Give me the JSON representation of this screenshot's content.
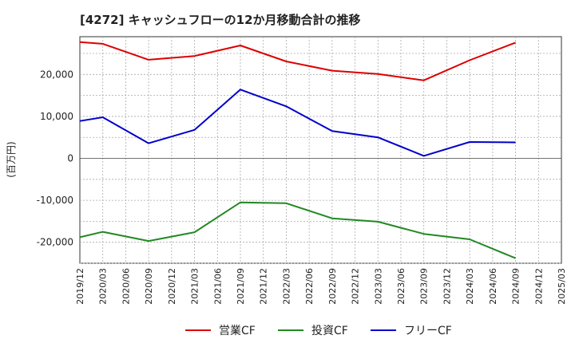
{
  "chart_data": {
    "type": "line",
    "title": "[4272]  キャッシュフローの12か月移動合計の推移",
    "ylabel": "(百万円)",
    "xlabel": "",
    "ylim": [
      -25000,
      29000
    ],
    "yticks": [
      -20000,
      -10000,
      0,
      10000,
      20000
    ],
    "ytick_labels": [
      "-20,000",
      "-10,000",
      "0",
      "10,000",
      "20,000"
    ],
    "x_ticks": [
      "2019/12",
      "2020/03",
      "2020/06",
      "2020/09",
      "2020/12",
      "2021/03",
      "2021/06",
      "2021/09",
      "2021/12",
      "2022/03",
      "2022/06",
      "2022/09",
      "2022/12",
      "2023/03",
      "2023/06",
      "2023/09",
      "2023/12",
      "2024/03",
      "2024/06",
      "2024/09",
      "2024/12",
      "2025/03"
    ],
    "grid": true,
    "legend_position": "bottom",
    "series": [
      {
        "name": "営業CF",
        "color": "#dd0000",
        "x": [
          "2019/12",
          "2020/03",
          "2020/09",
          "2021/03",
          "2021/09",
          "2022/03",
          "2022/09",
          "2023/03",
          "2023/09",
          "2024/03",
          "2024/09"
        ],
        "values": [
          27700,
          27300,
          23500,
          24400,
          26900,
          23100,
          20900,
          20100,
          18600,
          23400,
          27600
        ]
      },
      {
        "name": "投資CF",
        "color": "#228822",
        "x": [
          "2019/12",
          "2020/03",
          "2020/09",
          "2021/03",
          "2021/09",
          "2022/03",
          "2022/09",
          "2023/03",
          "2023/09",
          "2024/03",
          "2024/09"
        ],
        "values": [
          -18800,
          -17500,
          -19700,
          -17600,
          -10500,
          -10700,
          -14300,
          -15100,
          -18000,
          -19300,
          -23800
        ]
      },
      {
        "name": "フリーCF",
        "color": "#0000cc",
        "x": [
          "2019/12",
          "2020/03",
          "2020/09",
          "2021/03",
          "2021/09",
          "2022/03",
          "2022/09",
          "2023/03",
          "2023/09",
          "2024/03",
          "2024/09"
        ],
        "values": [
          8900,
          9800,
          3600,
          6800,
          16400,
          12400,
          6500,
          5000,
          600,
          3900,
          3800
        ]
      }
    ]
  }
}
